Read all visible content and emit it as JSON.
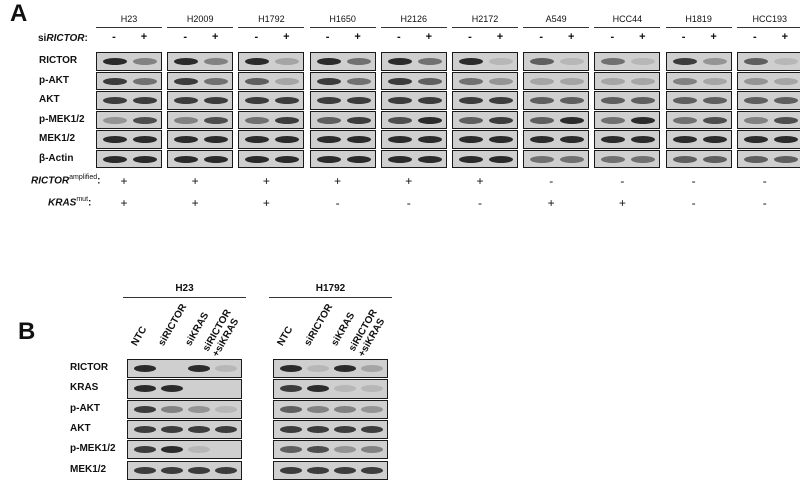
{
  "panelA": {
    "letter": "A",
    "si_label_prefix": "si",
    "si_label_gene": "RICTOR",
    "si_label_suffix": ":",
    "cell_lines": [
      "H23",
      "H2009",
      "H1792",
      "H1650",
      "H2126",
      "H2172",
      "A549",
      "HCC44",
      "H1819",
      "HCC193"
    ],
    "lane_signs": [
      "-",
      "+"
    ],
    "rows": [
      "RICTOR",
      "p-AKT",
      "AKT",
      "p-MEK1/2",
      "MEK1/2",
      "β-Actin"
    ],
    "rictor_label": "RICTOR",
    "rictor_sup": "amplified",
    "rictor_colon": ":",
    "rictor_status": [
      "+",
      "+",
      "+",
      "+",
      "+",
      "+",
      "-",
      "-",
      "-",
      "-"
    ],
    "kras_label": "KRAS",
    "kras_sup": "mut",
    "kras_colon": ":",
    "kras_status": [
      "+",
      "+",
      "+",
      "-",
      "-",
      "-",
      "+",
      "+",
      "-",
      "-"
    ],
    "band_intensity": [
      [
        [
          0.9,
          0.4
        ],
        [
          0.9,
          0.4
        ],
        [
          0.9,
          0.2
        ],
        [
          0.9,
          0.5
        ],
        [
          0.9,
          0.5
        ],
        [
          0.9,
          0.1
        ],
        [
          0.6,
          0.1
        ],
        [
          0.5,
          0.1
        ],
        [
          0.8,
          0.3
        ],
        [
          0.6,
          0.1
        ]
      ],
      [
        [
          0.8,
          0.5
        ],
        [
          0.8,
          0.5
        ],
        [
          0.6,
          0.2
        ],
        [
          0.8,
          0.5
        ],
        [
          0.8,
          0.6
        ],
        [
          0.5,
          0.3
        ],
        [
          0.2,
          0.2
        ],
        [
          0.2,
          0.2
        ],
        [
          0.4,
          0.2
        ],
        [
          0.3,
          0.2
        ]
      ],
      [
        [
          0.8,
          0.8
        ],
        [
          0.8,
          0.8
        ],
        [
          0.8,
          0.8
        ],
        [
          0.8,
          0.8
        ],
        [
          0.8,
          0.8
        ],
        [
          0.8,
          0.8
        ],
        [
          0.6,
          0.6
        ],
        [
          0.6,
          0.6
        ],
        [
          0.6,
          0.6
        ],
        [
          0.6,
          0.6
        ]
      ],
      [
        [
          0.3,
          0.7
        ],
        [
          0.4,
          0.7
        ],
        [
          0.5,
          0.8
        ],
        [
          0.6,
          0.8
        ],
        [
          0.7,
          0.9
        ],
        [
          0.6,
          0.8
        ],
        [
          0.6,
          0.9
        ],
        [
          0.5,
          0.9
        ],
        [
          0.5,
          0.7
        ],
        [
          0.4,
          0.7
        ]
      ],
      [
        [
          0.9,
          0.9
        ],
        [
          0.9,
          0.9
        ],
        [
          0.9,
          0.9
        ],
        [
          0.9,
          0.9
        ],
        [
          0.9,
          0.9
        ],
        [
          0.9,
          0.9
        ],
        [
          0.9,
          0.9
        ],
        [
          0.9,
          0.9
        ],
        [
          0.9,
          0.9
        ],
        [
          0.9,
          0.9
        ]
      ],
      [
        [
          0.9,
          0.9
        ],
        [
          0.9,
          0.9
        ],
        [
          0.9,
          0.9
        ],
        [
          0.9,
          0.9
        ],
        [
          0.9,
          0.9
        ],
        [
          0.9,
          0.9
        ],
        [
          0.5,
          0.5
        ],
        [
          0.5,
          0.5
        ],
        [
          0.6,
          0.6
        ],
        [
          0.6,
          0.6
        ]
      ]
    ]
  },
  "panelB": {
    "letter": "B",
    "groups": [
      "H23",
      "H1792"
    ],
    "lanes": [
      "NTC",
      "siRICTOR",
      "siKRAS",
      "siRICTOR\n+siKRAS"
    ],
    "lane_line1": [
      "NTC",
      "siRICTOR",
      "siKRAS",
      "siRICTOR"
    ],
    "lane_line2": [
      "",
      "",
      "",
      "+siKRAS"
    ],
    "rows": [
      "RICTOR",
      "KRAS",
      "p-AKT",
      "AKT",
      "p-MEK1/2",
      "MEK1/2"
    ],
    "band_intensity": [
      [
        [
          0.9,
          0.0,
          0.9,
          0.1
        ],
        [
          0.9,
          0.1,
          0.9,
          0.2
        ]
      ],
      [
        [
          0.9,
          0.9,
          0.0,
          0.0
        ],
        [
          0.8,
          0.9,
          0.1,
          0.1
        ]
      ],
      [
        [
          0.8,
          0.4,
          0.3,
          0.1
        ],
        [
          0.6,
          0.4,
          0.4,
          0.3
        ]
      ],
      [
        [
          0.8,
          0.8,
          0.8,
          0.8
        ],
        [
          0.8,
          0.8,
          0.8,
          0.8
        ]
      ],
      [
        [
          0.8,
          0.9,
          0.1,
          0.0
        ],
        [
          0.6,
          0.7,
          0.3,
          0.4
        ]
      ],
      [
        [
          0.8,
          0.8,
          0.8,
          0.8
        ],
        [
          0.8,
          0.8,
          0.8,
          0.8
        ]
      ]
    ]
  }
}
